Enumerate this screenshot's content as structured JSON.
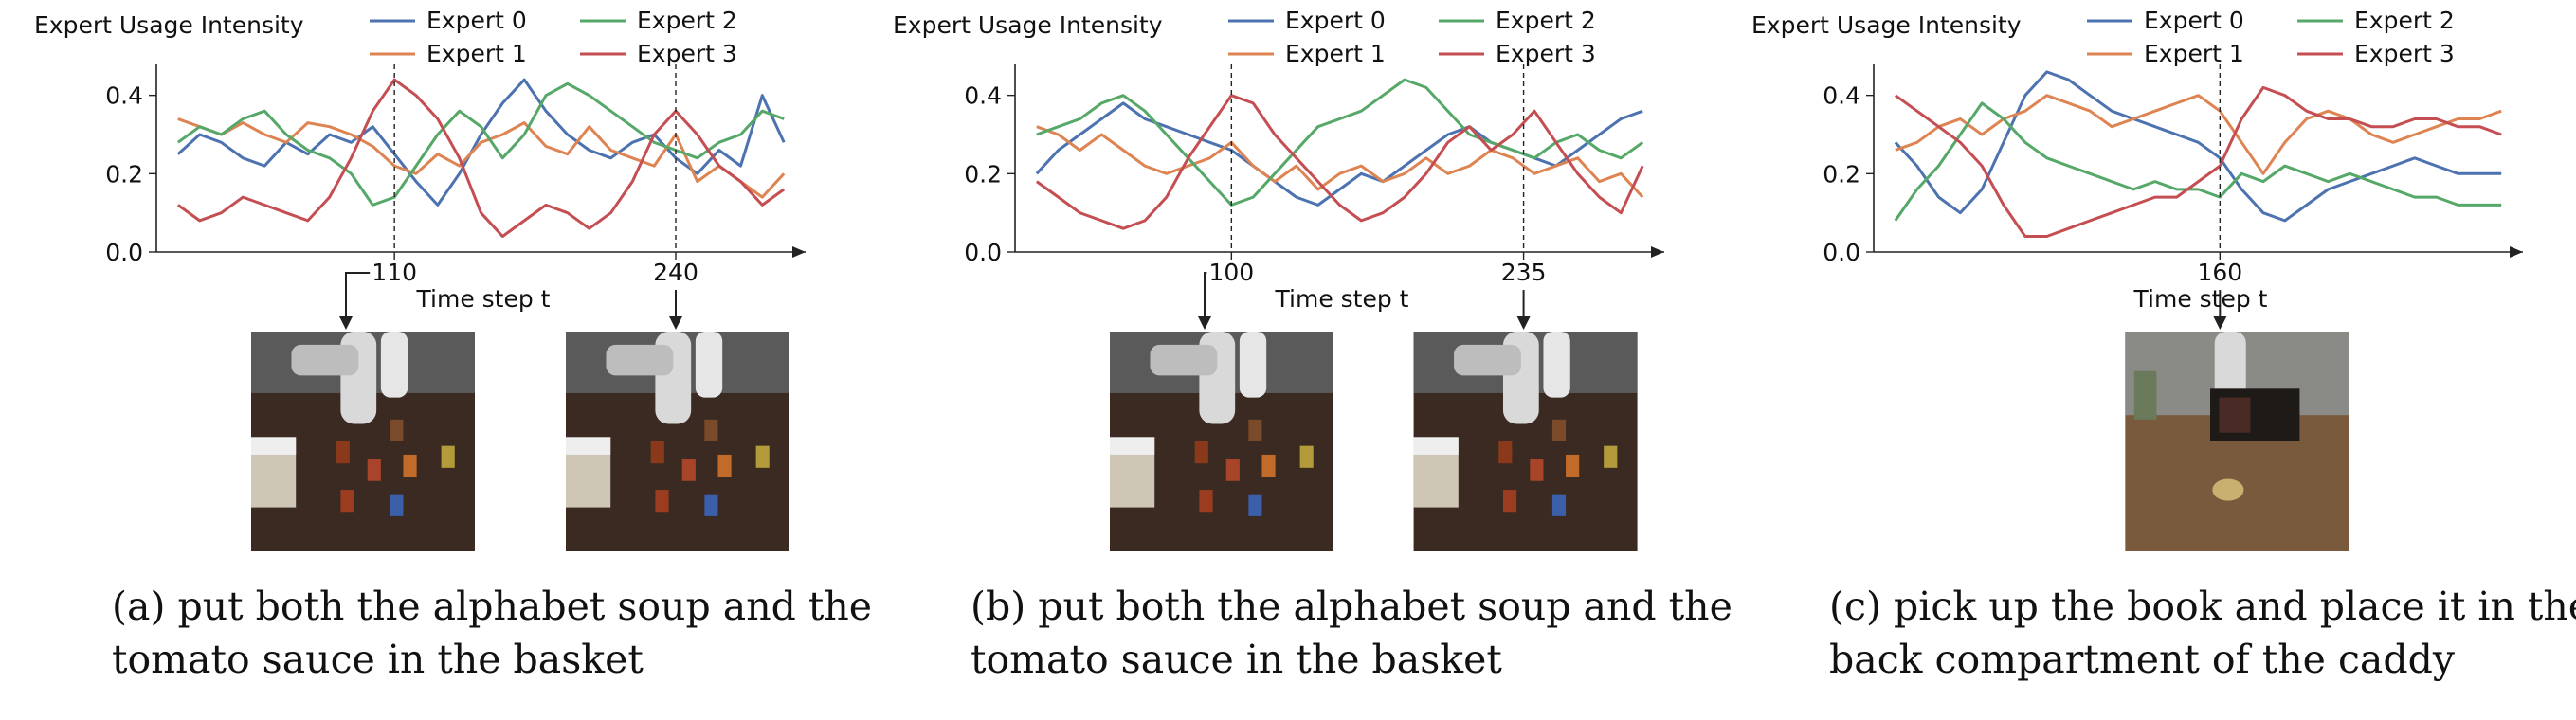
{
  "legend_colors": {
    "Expert 0": "#4c72b0",
    "Expert 1": "#dd8452",
    "Expert 2": "#55a868",
    "Expert 3": "#c44e52"
  },
  "panels": [
    {
      "caption_label": "(a)",
      "caption": "put both the alphabet soup and the tomato sauce in the basket",
      "image_icons": [
        "robot-basket-scene-icon",
        "robot-basket-scene-icon"
      ]
    },
    {
      "caption_label": "(b)",
      "caption": "put both the alphabet soup and the tomato sauce in the basket",
      "image_icons": [
        "robot-basket-scene-icon",
        "robot-basket-scene-icon"
      ]
    },
    {
      "caption_label": "(c)",
      "caption": "pick up the book and place it in the back compartment of the caddy",
      "image_icons": [
        "robot-caddy-scene-icon"
      ]
    }
  ],
  "chart_data": [
    {
      "type": "line",
      "ylabel": "Expert Usage Intensity",
      "xlabel": "Time step t",
      "ylim": [
        0,
        0.45
      ],
      "yticks": [
        0.0,
        0.2,
        0.4
      ],
      "xlim": [
        0,
        300
      ],
      "marked_timesteps": [
        110,
        240
      ],
      "legend": "top",
      "grid": false,
      "x": [
        10,
        20,
        30,
        40,
        50,
        60,
        70,
        80,
        90,
        100,
        110,
        120,
        130,
        140,
        150,
        160,
        170,
        180,
        190,
        200,
        210,
        220,
        230,
        240,
        250,
        260,
        270,
        280,
        290
      ],
      "series": [
        {
          "name": "Expert 0",
          "values": [
            0.25,
            0.3,
            0.28,
            0.24,
            0.22,
            0.28,
            0.25,
            0.3,
            0.28,
            0.32,
            0.25,
            0.18,
            0.12,
            0.2,
            0.3,
            0.38,
            0.44,
            0.36,
            0.3,
            0.26,
            0.24,
            0.28,
            0.3,
            0.24,
            0.2,
            0.26,
            0.22,
            0.4,
            0.28
          ]
        },
        {
          "name": "Expert 1",
          "values": [
            0.34,
            0.32,
            0.3,
            0.33,
            0.3,
            0.28,
            0.33,
            0.32,
            0.3,
            0.27,
            0.22,
            0.2,
            0.25,
            0.22,
            0.28,
            0.3,
            0.33,
            0.27,
            0.25,
            0.32,
            0.26,
            0.24,
            0.22,
            0.3,
            0.18,
            0.22,
            0.18,
            0.14,
            0.2
          ]
        },
        {
          "name": "Expert 2",
          "values": [
            0.28,
            0.32,
            0.3,
            0.34,
            0.36,
            0.3,
            0.26,
            0.24,
            0.2,
            0.12,
            0.14,
            0.22,
            0.3,
            0.36,
            0.32,
            0.24,
            0.3,
            0.4,
            0.43,
            0.4,
            0.36,
            0.32,
            0.28,
            0.26,
            0.24,
            0.28,
            0.3,
            0.36,
            0.34
          ]
        },
        {
          "name": "Expert 3",
          "values": [
            0.12,
            0.08,
            0.1,
            0.14,
            0.12,
            0.1,
            0.08,
            0.14,
            0.24,
            0.36,
            0.44,
            0.4,
            0.34,
            0.24,
            0.1,
            0.04,
            0.08,
            0.12,
            0.1,
            0.06,
            0.1,
            0.18,
            0.3,
            0.36,
            0.3,
            0.22,
            0.18,
            0.12,
            0.16
          ]
        }
      ]
    },
    {
      "type": "line",
      "ylabel": "Expert Usage Intensity",
      "xlabel": "Time step t",
      "ylim": [
        0,
        0.45
      ],
      "yticks": [
        0.0,
        0.2,
        0.4
      ],
      "xlim": [
        0,
        300
      ],
      "marked_timesteps": [
        100,
        235
      ],
      "legend": "top",
      "grid": false,
      "x": [
        10,
        20,
        30,
        40,
        50,
        60,
        70,
        80,
        90,
        100,
        110,
        120,
        130,
        140,
        150,
        160,
        170,
        180,
        190,
        200,
        210,
        220,
        230,
        240,
        250,
        260,
        270,
        280,
        290
      ],
      "series": [
        {
          "name": "Expert 0",
          "values": [
            0.2,
            0.26,
            0.3,
            0.34,
            0.38,
            0.34,
            0.32,
            0.3,
            0.28,
            0.26,
            0.22,
            0.18,
            0.14,
            0.12,
            0.16,
            0.2,
            0.18,
            0.22,
            0.26,
            0.3,
            0.32,
            0.28,
            0.26,
            0.24,
            0.22,
            0.26,
            0.3,
            0.34,
            0.36
          ]
        },
        {
          "name": "Expert 1",
          "values": [
            0.32,
            0.3,
            0.26,
            0.3,
            0.26,
            0.22,
            0.2,
            0.22,
            0.24,
            0.28,
            0.22,
            0.18,
            0.22,
            0.16,
            0.2,
            0.22,
            0.18,
            0.2,
            0.24,
            0.2,
            0.22,
            0.26,
            0.24,
            0.2,
            0.22,
            0.24,
            0.18,
            0.2,
            0.14
          ]
        },
        {
          "name": "Expert 2",
          "values": [
            0.3,
            0.32,
            0.34,
            0.38,
            0.4,
            0.36,
            0.3,
            0.24,
            0.18,
            0.12,
            0.14,
            0.2,
            0.26,
            0.32,
            0.34,
            0.36,
            0.4,
            0.44,
            0.42,
            0.36,
            0.3,
            0.28,
            0.26,
            0.24,
            0.28,
            0.3,
            0.26,
            0.24,
            0.28
          ]
        },
        {
          "name": "Expert 3",
          "values": [
            0.18,
            0.14,
            0.1,
            0.08,
            0.06,
            0.08,
            0.14,
            0.24,
            0.32,
            0.4,
            0.38,
            0.3,
            0.24,
            0.18,
            0.12,
            0.08,
            0.1,
            0.14,
            0.2,
            0.28,
            0.32,
            0.26,
            0.3,
            0.36,
            0.28,
            0.2,
            0.14,
            0.1,
            0.22
          ]
        }
      ]
    },
    {
      "type": "line",
      "ylabel": "Expert Usage Intensity",
      "xlabel": "Time step t",
      "ylim": [
        0,
        0.45
      ],
      "yticks": [
        0.0,
        0.2,
        0.4
      ],
      "xlim": [
        0,
        300
      ],
      "marked_timesteps": [
        160
      ],
      "legend": "top",
      "grid": false,
      "x": [
        10,
        20,
        30,
        40,
        50,
        60,
        70,
        80,
        90,
        100,
        110,
        120,
        130,
        140,
        150,
        160,
        170,
        180,
        190,
        200,
        210,
        220,
        230,
        240,
        250,
        260,
        270,
        280,
        290
      ],
      "series": [
        {
          "name": "Expert 0",
          "values": [
            0.28,
            0.22,
            0.14,
            0.1,
            0.16,
            0.28,
            0.4,
            0.46,
            0.44,
            0.4,
            0.36,
            0.34,
            0.32,
            0.3,
            0.28,
            0.24,
            0.16,
            0.1,
            0.08,
            0.12,
            0.16,
            0.18,
            0.2,
            0.22,
            0.24,
            0.22,
            0.2,
            0.2,
            0.2
          ]
        },
        {
          "name": "Expert 1",
          "values": [
            0.26,
            0.28,
            0.32,
            0.34,
            0.3,
            0.34,
            0.36,
            0.4,
            0.38,
            0.36,
            0.32,
            0.34,
            0.36,
            0.38,
            0.4,
            0.36,
            0.28,
            0.2,
            0.28,
            0.34,
            0.36,
            0.34,
            0.3,
            0.28,
            0.3,
            0.32,
            0.34,
            0.34,
            0.36
          ]
        },
        {
          "name": "Expert 2",
          "values": [
            0.08,
            0.16,
            0.22,
            0.3,
            0.38,
            0.34,
            0.28,
            0.24,
            0.22,
            0.2,
            0.18,
            0.16,
            0.18,
            0.16,
            0.16,
            0.14,
            0.2,
            0.18,
            0.22,
            0.2,
            0.18,
            0.2,
            0.18,
            0.16,
            0.14,
            0.14,
            0.12,
            0.12,
            0.12
          ]
        },
        {
          "name": "Expert 3",
          "values": [
            0.4,
            0.36,
            0.32,
            0.28,
            0.22,
            0.12,
            0.04,
            0.04,
            0.06,
            0.08,
            0.1,
            0.12,
            0.14,
            0.14,
            0.18,
            0.22,
            0.34,
            0.42,
            0.4,
            0.36,
            0.34,
            0.34,
            0.32,
            0.32,
            0.34,
            0.34,
            0.32,
            0.32,
            0.3
          ]
        }
      ]
    }
  ]
}
